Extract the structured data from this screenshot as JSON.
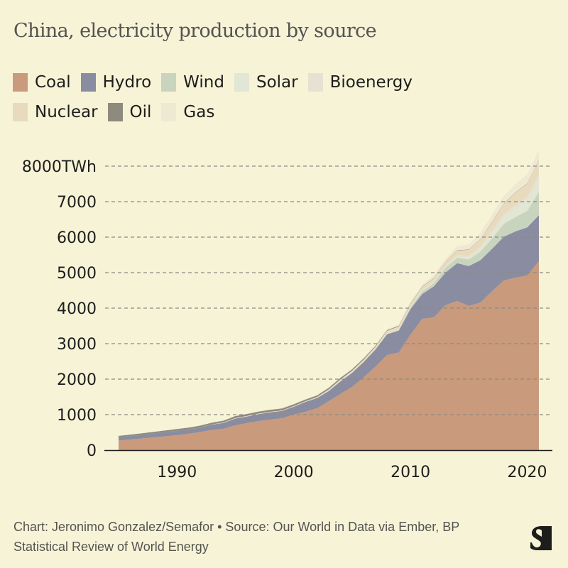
{
  "title": "China, electricity production by source",
  "footer": {
    "line1": "Chart: Jeronimo Gonzalez/Semafor • Source: Our World in Data via Ember, BP",
    "line2": "Statistical Review of World Energy"
  },
  "logo": "semafor-logo",
  "legend": [
    {
      "name": "Coal",
      "color": "#c99a7c"
    },
    {
      "name": "Hydro",
      "color": "#8a8da1"
    },
    {
      "name": "Wind",
      "color": "#c9d4bf"
    },
    {
      "name": "Solar",
      "color": "#e1e6d5"
    },
    {
      "name": "Bioenergy",
      "color": "#e6e2d1"
    },
    {
      "name": "Nuclear",
      "color": "#e8dbbd"
    },
    {
      "name": "Oil",
      "color": "#8c8b7d"
    },
    {
      "name": "Gas",
      "color": "#efe8d3"
    }
  ],
  "chart_data": {
    "type": "area",
    "stacked": true,
    "title": "China, electricity production by source",
    "xlabel": "",
    "ylabel": "TWh",
    "ylim": [
      0,
      8000
    ],
    "xlim": [
      1985,
      2021
    ],
    "grid": true,
    "legend_position": "top",
    "y_ticks": [
      0,
      1000,
      2000,
      3000,
      4000,
      5000,
      6000,
      7000,
      8000
    ],
    "y_tick_labels": [
      "0",
      "1000",
      "2000",
      "3000",
      "4000",
      "5000",
      "6000",
      "7000",
      "8000TWh"
    ],
    "x_ticks": [
      1990,
      2000,
      2010,
      2020
    ],
    "x_tick_labels": [
      "1990",
      "2000",
      "2010",
      "2020"
    ],
    "x": [
      1985,
      1986,
      1987,
      1988,
      1989,
      1990,
      1991,
      1992,
      1993,
      1994,
      1995,
      1996,
      1997,
      1998,
      1999,
      2000,
      2001,
      2002,
      2003,
      2004,
      2005,
      2006,
      2007,
      2008,
      2009,
      2010,
      2011,
      2012,
      2013,
      2014,
      2015,
      2016,
      2017,
      2018,
      2019,
      2020,
      2021
    ],
    "series": [
      {
        "name": "Coal",
        "values": [
          270,
          300,
          330,
          360,
          390,
          420,
          460,
          510,
          570,
          600,
          700,
          760,
          820,
          860,
          900,
          1000,
          1080,
          1180,
          1380,
          1580,
          1780,
          2050,
          2350,
          2680,
          2750,
          3250,
          3700,
          3740,
          4080,
          4200,
          4060,
          4160,
          4480,
          4780,
          4860,
          4920,
          5320
        ]
      },
      {
        "name": "Hydro",
        "values": [
          92,
          95,
          100,
          109,
          118,
          126,
          125,
          131,
          151,
          168,
          191,
          188,
          196,
          207,
          204,
          222,
          277,
          288,
          284,
          354,
          397,
          436,
          486,
          585,
          616,
          722,
          699,
          872,
          920,
          1064,
          1126,
          1193,
          1194,
          1232,
          1302,
          1355,
          1300
        ]
      },
      {
        "name": "Wind",
        "values": [
          0,
          0,
          0,
          0,
          0,
          0,
          0,
          0,
          0,
          1,
          1,
          1,
          1,
          1,
          1,
          1,
          1,
          1,
          1,
          1,
          2,
          4,
          6,
          15,
          28,
          45,
          74,
          96,
          141,
          156,
          186,
          241,
          295,
          366,
          406,
          467,
          656
        ]
      },
      {
        "name": "Solar",
        "values": [
          0,
          0,
          0,
          0,
          0,
          0,
          0,
          0,
          0,
          0,
          0,
          0,
          0,
          0,
          0,
          0,
          0,
          0,
          0,
          0,
          0,
          0,
          0,
          0,
          0,
          1,
          3,
          4,
          8,
          29,
          45,
          75,
          131,
          177,
          224,
          261,
          327
        ]
      },
      {
        "name": "Bioenergy",
        "values": [
          0,
          0,
          0,
          0,
          0,
          0,
          0,
          0,
          0,
          0,
          0,
          1,
          1,
          1,
          1,
          2,
          2,
          3,
          3,
          4,
          5,
          7,
          9,
          14,
          21,
          25,
          31,
          34,
          39,
          46,
          53,
          65,
          79,
          93,
          112,
          136,
          165
        ]
      },
      {
        "name": "Nuclear",
        "values": [
          0,
          0,
          0,
          0,
          0,
          0,
          0,
          1,
          3,
          14,
          13,
          14,
          14,
          14,
          15,
          17,
          18,
          25,
          43,
          50,
          53,
          55,
          62,
          68,
          70,
          74,
          86,
          97,
          111,
          132,
          171,
          213,
          248,
          294,
          348,
          366,
          407
        ]
      },
      {
        "name": "Oil",
        "values": [
          40,
          42,
          44,
          46,
          48,
          50,
          50,
          50,
          52,
          50,
          55,
          55,
          55,
          55,
          55,
          50,
          48,
          46,
          45,
          45,
          40,
          35,
          25,
          20,
          18,
          15,
          12,
          10,
          10,
          10,
          10,
          10,
          10,
          10,
          10,
          10,
          10
        ]
      },
      {
        "name": "Gas",
        "values": [
          5,
          5,
          5,
          5,
          5,
          5,
          5,
          5,
          5,
          5,
          5,
          8,
          9,
          10,
          11,
          12,
          13,
          14,
          15,
          18,
          20,
          25,
          35,
          35,
          40,
          40,
          60,
          70,
          80,
          110,
          145,
          165,
          200,
          215,
          235,
          250,
          272
        ]
      }
    ]
  }
}
